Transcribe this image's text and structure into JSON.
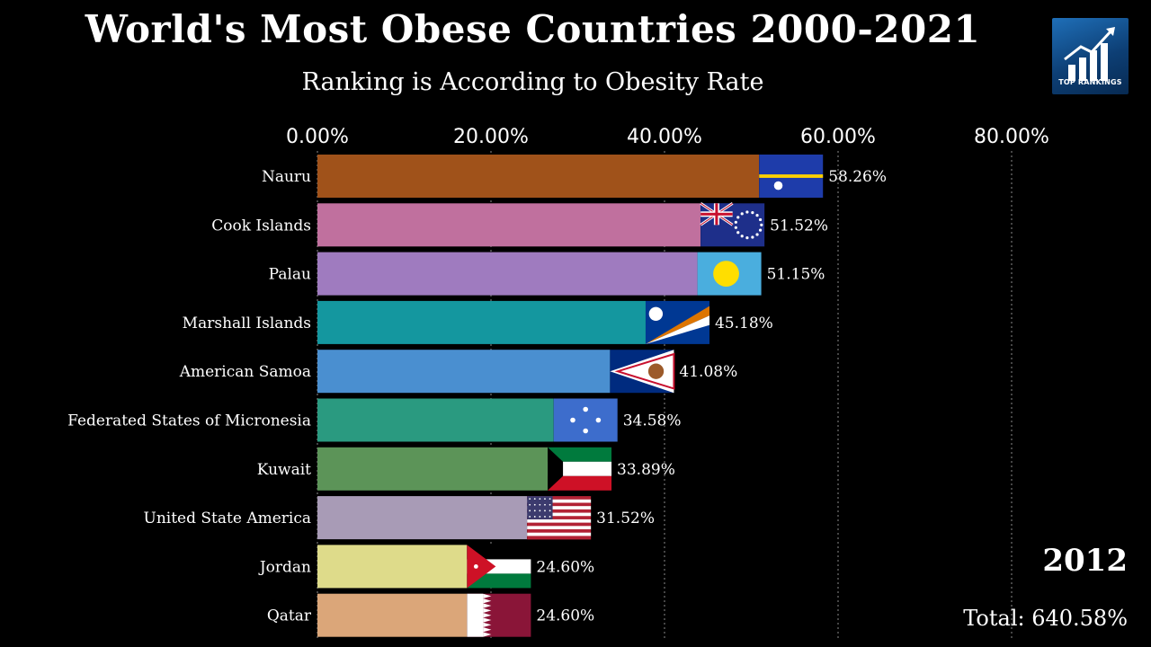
{
  "title": "World's Most Obese Countries 2000-2021",
  "subtitle": "Ranking is According to Obesity Rate",
  "logo": {
    "text": "TOP RANKINGS",
    "icon": "bar-chart-trend-arrow-icon"
  },
  "year": "2012",
  "total": "Total: 640.58%",
  "chart_data": {
    "type": "bar",
    "orientation": "horizontal",
    "title": "World's Most Obese Countries 2000-2021",
    "subtitle": "Ranking is According to Obesity Rate",
    "xlim": [
      0,
      80
    ],
    "x_ticks": [
      0,
      20,
      40,
      60,
      80
    ],
    "x_tick_labels": [
      "0.00%",
      "20.00%",
      "40.00%",
      "60.00%",
      "80.00%"
    ],
    "grid": "vertical-dotted",
    "categories": [
      "Nauru",
      "Cook Islands",
      "Palau",
      "Marshall Islands",
      "American Samoa",
      "Federated States of Micronesia",
      "Kuwait",
      "United State America",
      "Jordan",
      "Qatar"
    ],
    "values": [
      58.26,
      51.52,
      51.15,
      45.18,
      41.08,
      34.58,
      33.89,
      31.52,
      24.6,
      24.6
    ],
    "value_labels": [
      "58.26%",
      "51.52%",
      "51.15%",
      "45.18%",
      "41.08%",
      "34.58%",
      "33.89%",
      "31.52%",
      "24.60%",
      "24.60%"
    ],
    "colors": [
      "#a0521a",
      "#c0709e",
      "#9f7bbf",
      "#14979f",
      "#4a8fd0",
      "#2a9a80",
      "#5c9458",
      "#a89bb6",
      "#dedb8a",
      "#dba679"
    ],
    "flags": [
      "nauru-flag",
      "cook-islands-flag",
      "palau-flag",
      "marshall-islands-flag",
      "american-samoa-flag",
      "micronesia-flag",
      "kuwait-flag",
      "usa-flag",
      "jordan-flag",
      "qatar-flag"
    ]
  }
}
